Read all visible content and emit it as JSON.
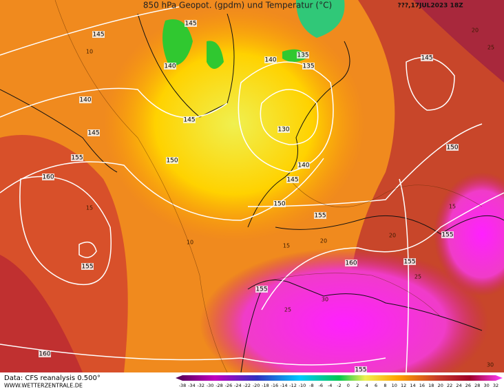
{
  "header": {
    "title": "850 hPa Geopot. (gpdm) und Temperatur (°C)",
    "timestamp": "???,17JUL2023 18Z"
  },
  "footer": {
    "source": "Data: CFS reanalysis 0.500°",
    "website": "WWW.WETTERZENTRALE.DE"
  },
  "colorbar": {
    "labels": [
      -38,
      -34,
      -32,
      -30,
      -28,
      -26,
      -24,
      -22,
      -20,
      -18,
      -16,
      -14,
      -12,
      -10,
      -8,
      -6,
      -4,
      -2,
      0,
      2,
      4,
      6,
      8,
      10,
      12,
      14,
      16,
      18,
      20,
      22,
      24,
      26,
      28,
      30,
      32
    ]
  },
  "map": {
    "geopotential_labels": [
      145,
      145,
      140,
      140,
      145,
      155,
      160,
      150,
      145,
      140,
      135,
      135,
      130,
      140,
      145,
      150,
      155,
      160,
      155,
      155,
      155,
      150,
      145,
      155,
      160,
      155
    ],
    "temperature_labels": [
      10,
      15,
      10,
      15,
      20,
      20,
      25,
      20,
      15,
      30,
      30,
      25,
      25
    ]
  }
}
